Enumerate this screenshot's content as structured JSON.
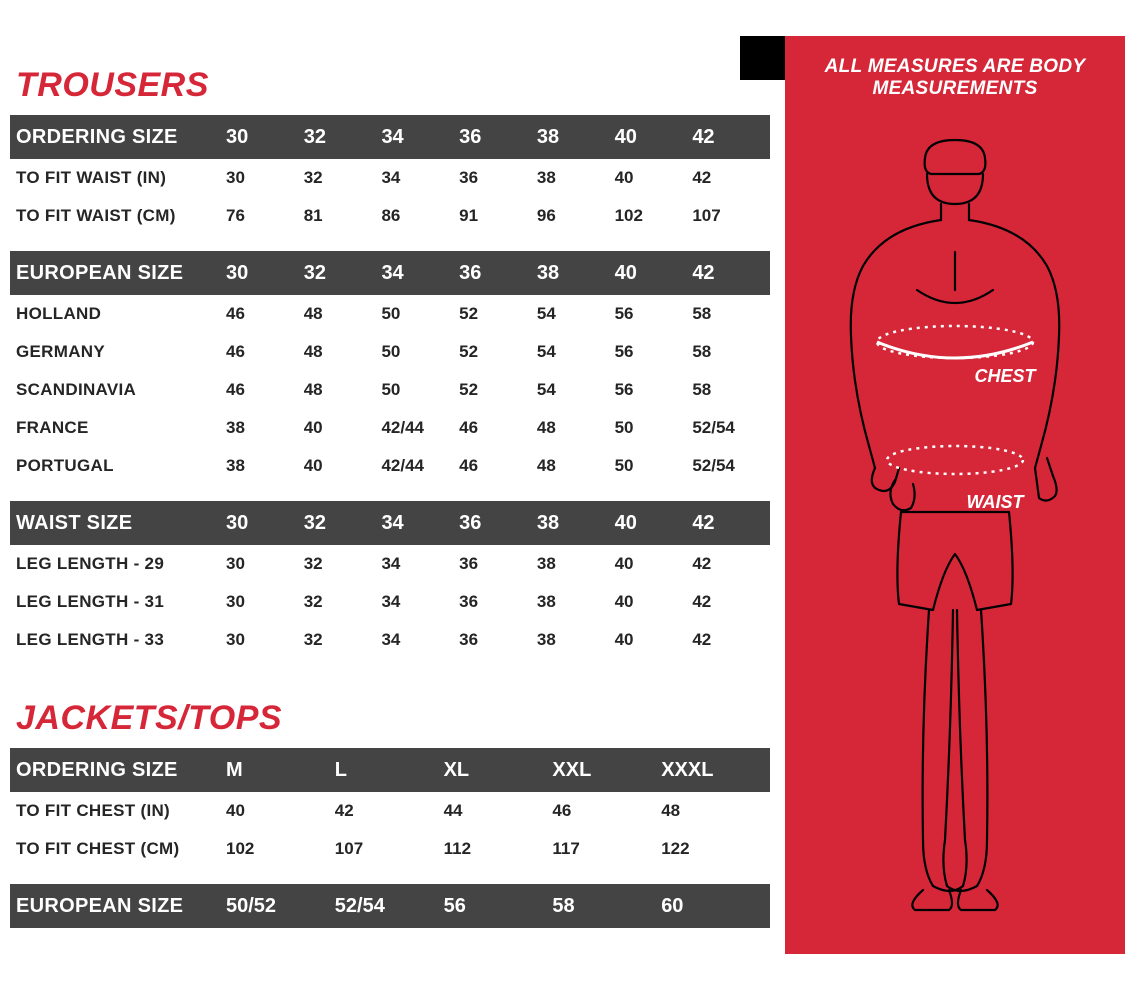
{
  "colors": {
    "accent": "#d62739",
    "dark": "#252525",
    "headerRow": "#444444",
    "panel": "#d62739",
    "white": "#ffffff"
  },
  "trousers": {
    "title": "TROUSERS",
    "sections": [
      {
        "header": {
          "label": "ORDERING SIZE",
          "values": [
            "30",
            "32",
            "34",
            "36",
            "38",
            "40",
            "42"
          ]
        },
        "rows": [
          {
            "label": "TO FIT WAIST (IN)",
            "values": [
              "30",
              "32",
              "34",
              "36",
              "38",
              "40",
              "42"
            ]
          },
          {
            "label": "TO FIT WAIST (CM)",
            "values": [
              "76",
              "81",
              "86",
              "91",
              "96",
              "102",
              "107"
            ]
          }
        ]
      },
      {
        "header": {
          "label": "EUROPEAN SIZE",
          "values": [
            "30",
            "32",
            "34",
            "36",
            "38",
            "40",
            "42"
          ]
        },
        "rows": [
          {
            "label": "HOLLAND",
            "values": [
              "46",
              "48",
              "50",
              "52",
              "54",
              "56",
              "58"
            ]
          },
          {
            "label": "GERMANY",
            "values": [
              "46",
              "48",
              "50",
              "52",
              "54",
              "56",
              "58"
            ]
          },
          {
            "label": "SCANDINAVIA",
            "values": [
              "46",
              "48",
              "50",
              "52",
              "54",
              "56",
              "58"
            ]
          },
          {
            "label": "FRANCE",
            "values": [
              "38",
              "40",
              "42/44",
              "46",
              "48",
              "50",
              "52/54"
            ]
          },
          {
            "label": "PORTUGAL",
            "values": [
              "38",
              "40",
              "42/44",
              "46",
              "48",
              "50",
              "52/54"
            ]
          }
        ]
      },
      {
        "header": {
          "label": "WAIST SIZE",
          "values": [
            "30",
            "32",
            "34",
            "36",
            "38",
            "40",
            "42"
          ]
        },
        "rows": [
          {
            "label": "LEG LENGTH - 29",
            "values": [
              "30",
              "32",
              "34",
              "36",
              "38",
              "40",
              "42"
            ]
          },
          {
            "label": "LEG LENGTH - 31",
            "values": [
              "30",
              "32",
              "34",
              "36",
              "38",
              "40",
              "42"
            ]
          },
          {
            "label": "LEG LENGTH - 33",
            "values": [
              "30",
              "32",
              "34",
              "36",
              "38",
              "40",
              "42"
            ]
          }
        ]
      }
    ]
  },
  "jackets": {
    "title": "JACKETS/TOPS",
    "sections": [
      {
        "header": {
          "label": "ORDERING SIZE",
          "values": [
            "M",
            "L",
            "XL",
            "XXL",
            "XXXL"
          ]
        },
        "rows": [
          {
            "label": "TO FIT CHEST (IN)",
            "values": [
              "40",
              "42",
              "44",
              "46",
              "48"
            ]
          },
          {
            "label": "TO FIT CHEST (CM)",
            "values": [
              "102",
              "107",
              "112",
              "117",
              "122"
            ]
          }
        ]
      },
      {
        "header": {
          "label": "EUROPEAN SIZE",
          "values": [
            "50/52",
            "52/54",
            "56",
            "58",
            "60"
          ]
        },
        "rows": []
      }
    ]
  },
  "panel": {
    "title": "ALL MEASURES ARE BODY MEASUREMENTS",
    "labels": {
      "chest": "CHEST",
      "waist": "WAIST"
    }
  }
}
